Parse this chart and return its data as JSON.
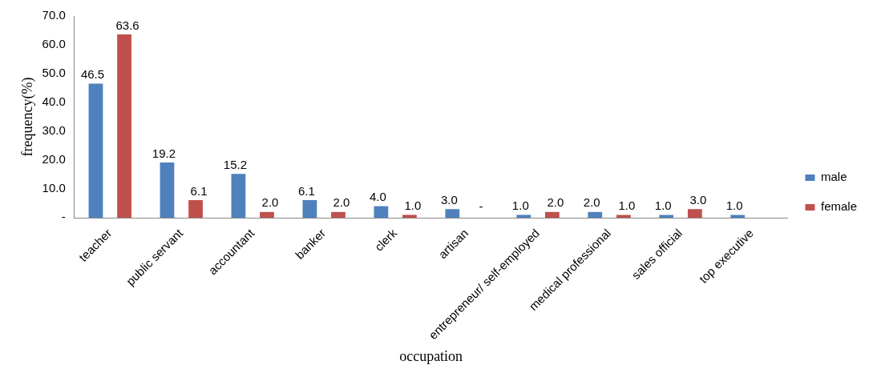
{
  "chart_data": {
    "type": "bar",
    "xlabel": "occupation",
    "ylabel": "frequency(%)",
    "categories": [
      "teacher",
      "public servant",
      "accountant",
      "banker",
      "clerk",
      "artisan",
      "entrepreneur/ self-employed",
      "medical professional",
      "sales official",
      "top executive"
    ],
    "series": [
      {
        "name": "male",
        "color": "#4f81bd",
        "values": [
          46.5,
          19.2,
          15.2,
          6.1,
          4.0,
          3.0,
          1.0,
          2.0,
          1.0,
          1.0
        ],
        "value_labels": [
          "46.5",
          "19.2",
          "15.2",
          "6.1",
          "4.0",
          "3.0",
          "1.0",
          "2.0",
          "1.0",
          "1.0"
        ]
      },
      {
        "name": "female",
        "color": "#c0504d",
        "values": [
          63.6,
          6.1,
          2.0,
          2.0,
          1.0,
          0,
          2.0,
          1.0,
          3.0,
          null
        ],
        "value_labels": [
          "63.6",
          "6.1",
          "2.0",
          "2.0",
          "1.0",
          null,
          "2.0",
          "1.0",
          "3.0",
          null
        ]
      }
    ],
    "ylim": [
      0,
      70
    ],
    "yticks": [
      {
        "value": 0,
        "label": "-"
      },
      {
        "value": 10,
        "label": "10.0"
      },
      {
        "value": 20,
        "label": "20.0"
      },
      {
        "value": 30,
        "label": "30.0"
      },
      {
        "value": 40,
        "label": "40.0"
      },
      {
        "value": 50,
        "label": "50.0"
      },
      {
        "value": 60,
        "label": "60.0"
      },
      {
        "value": 70,
        "label": "70.0"
      }
    ],
    "annotations": [
      {
        "text": "-",
        "x": "artisan",
        "y": 0
      }
    ],
    "grid": false,
    "legend": "right"
  }
}
